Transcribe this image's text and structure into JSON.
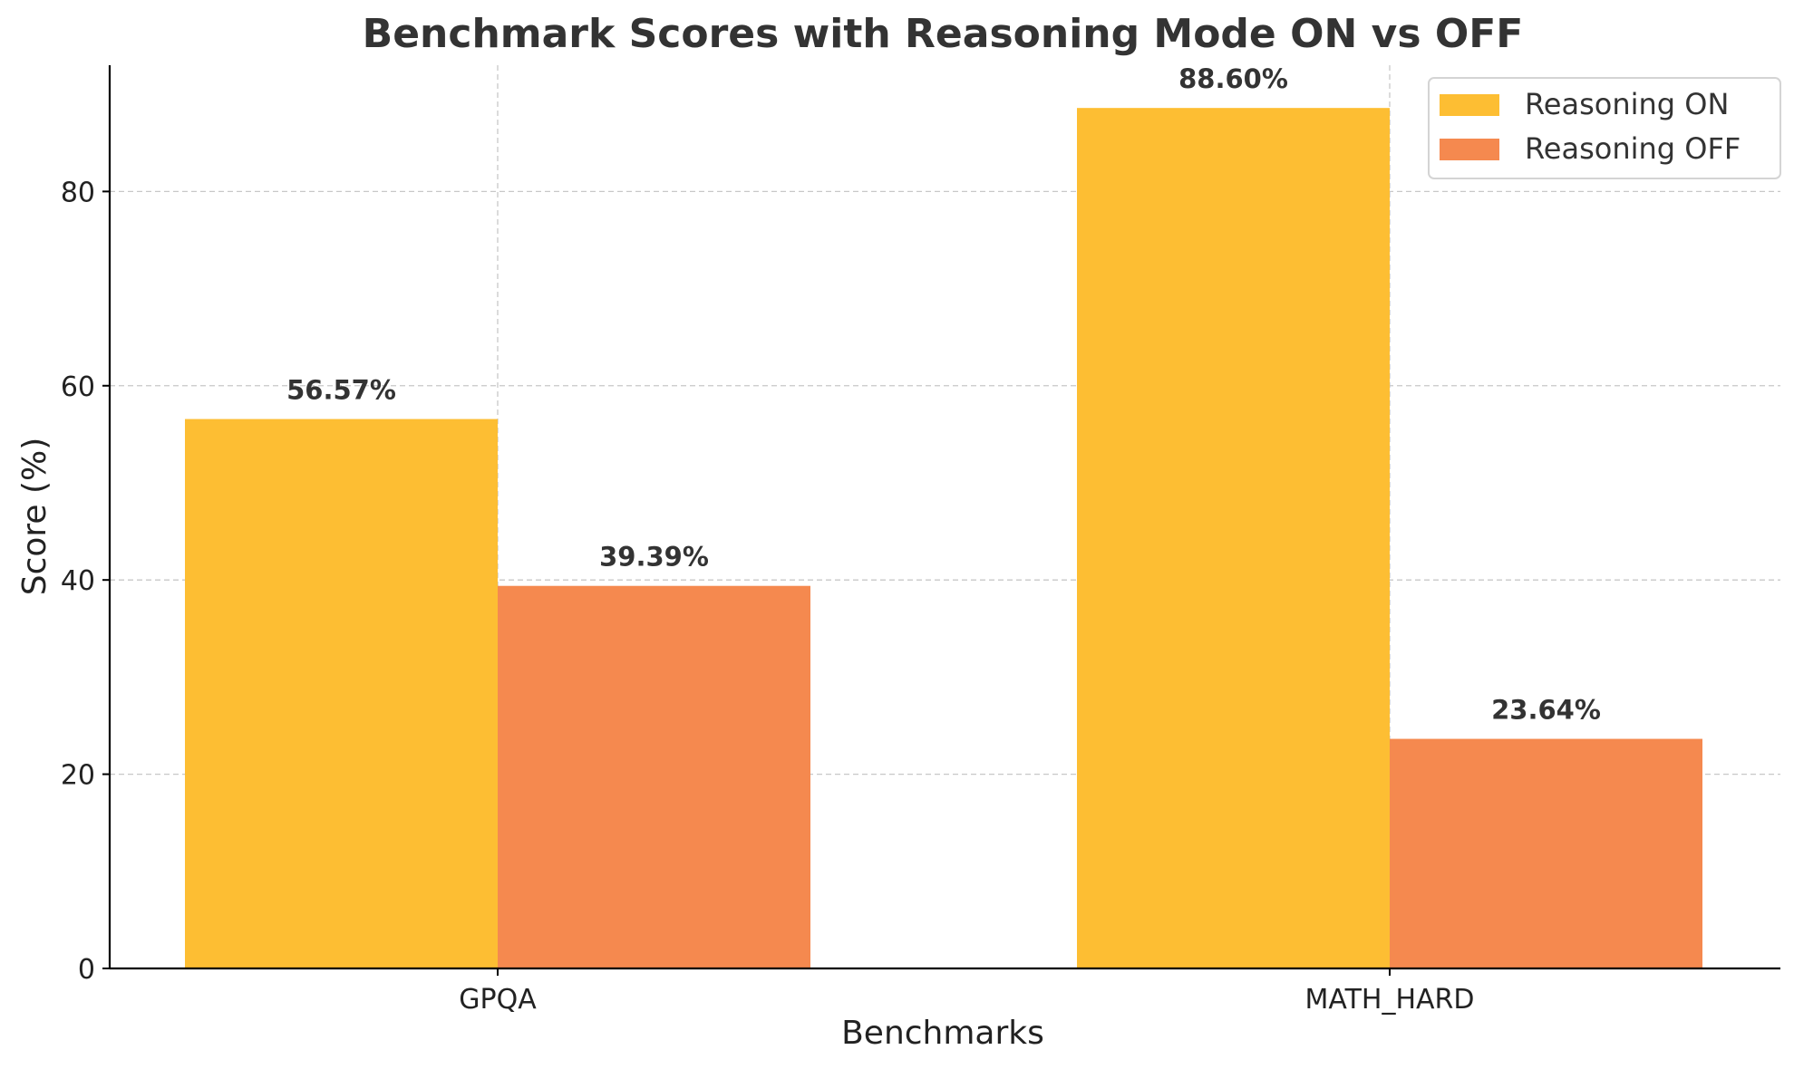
{
  "chart_data": {
    "type": "bar",
    "title": "Benchmark Scores with Reasoning Mode ON vs OFF",
    "xlabel": "Benchmarks",
    "ylabel": "Score (%)",
    "categories": [
      "GPQA",
      "MATH_HARD"
    ],
    "series": [
      {
        "name": "Reasoning ON",
        "color": "#FDBE33",
        "values": [
          56.57,
          88.6
        ],
        "labels": [
          "56.57%",
          "88.60%"
        ]
      },
      {
        "name": "Reasoning OFF",
        "color": "#F5894F",
        "values": [
          39.39,
          23.64
        ],
        "labels": [
          "39.39%",
          "23.64%"
        ]
      }
    ],
    "ylim": [
      0,
      93
    ],
    "yticks": [
      0,
      20,
      40,
      60,
      80
    ],
    "grid": true,
    "legend_position": "top-right"
  }
}
